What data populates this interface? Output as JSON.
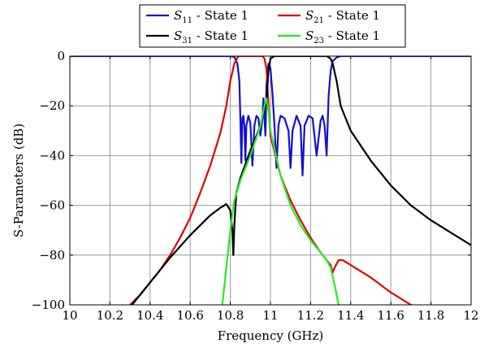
{
  "chart_data": {
    "type": "line",
    "xlabel": "Frequency (GHz)",
    "ylabel": "S-Parameters (dB)",
    "xlim": [
      10,
      12
    ],
    "ylim": [
      -100,
      0
    ],
    "xticks": [
      "10",
      "10.2",
      "10.4",
      "10.6",
      "10.8",
      "11",
      "11.2",
      "11.4",
      "11.6",
      "11.8",
      "12"
    ],
    "yticks": [
      "0",
      "−20",
      "−40",
      "−60",
      "−80",
      "−100"
    ],
    "grid": true,
    "legend_position": "top-center (above plot)",
    "series": [
      {
        "name": "S11 - State 1",
        "label_main": "S",
        "label_sub": "11",
        "label_rest": " - State 1",
        "color": "#1010d0",
        "points": [
          [
            10.0,
            0
          ],
          [
            10.8,
            0
          ],
          [
            10.82,
            -0.3
          ],
          [
            10.835,
            -3
          ],
          [
            10.845,
            -10
          ],
          [
            10.85,
            -25
          ],
          [
            10.855,
            -43
          ],
          [
            10.86,
            -25
          ],
          [
            10.865,
            -24
          ],
          [
            10.87,
            -28
          ],
          [
            10.875,
            -42
          ],
          [
            10.88,
            -28
          ],
          [
            10.89,
            -24
          ],
          [
            10.9,
            -27
          ],
          [
            10.91,
            -44
          ],
          [
            10.92,
            -28
          ],
          [
            10.93,
            -24
          ],
          [
            10.94,
            -25
          ],
          [
            10.95,
            -32
          ],
          [
            10.96,
            -25
          ],
          [
            10.965,
            -17
          ],
          [
            10.97,
            -25
          ],
          [
            10.975,
            -32
          ],
          [
            10.98,
            -12
          ],
          [
            10.99,
            -3
          ],
          [
            11.0,
            -5
          ],
          [
            11.01,
            -15
          ],
          [
            11.02,
            -28
          ],
          [
            11.03,
            -45
          ],
          [
            11.04,
            -28
          ],
          [
            11.05,
            -24
          ],
          [
            11.07,
            -25
          ],
          [
            11.09,
            -30
          ],
          [
            11.1,
            -45
          ],
          [
            11.11,
            -30
          ],
          [
            11.13,
            -24
          ],
          [
            11.15,
            -28
          ],
          [
            11.16,
            -48
          ],
          [
            11.17,
            -28
          ],
          [
            11.19,
            -24
          ],
          [
            11.21,
            -25
          ],
          [
            11.23,
            -40
          ],
          [
            11.25,
            -26
          ],
          [
            11.26,
            -24
          ],
          [
            11.27,
            -28
          ],
          [
            11.28,
            -40
          ],
          [
            11.29,
            -16
          ],
          [
            11.3,
            -6
          ],
          [
            11.31,
            -2
          ],
          [
            11.33,
            -0.5
          ],
          [
            11.35,
            0
          ],
          [
            12.0,
            0
          ]
        ]
      },
      {
        "name": "S21 - State 1",
        "label_main": "S",
        "label_sub": "21",
        "label_rest": " - State 1",
        "color": "#e00000",
        "points": [
          [
            10.3,
            -100
          ],
          [
            10.35,
            -96
          ],
          [
            10.4,
            -91
          ],
          [
            10.45,
            -86
          ],
          [
            10.5,
            -80
          ],
          [
            10.55,
            -73
          ],
          [
            10.6,
            -65
          ],
          [
            10.65,
            -55
          ],
          [
            10.7,
            -44
          ],
          [
            10.75,
            -31
          ],
          [
            10.78,
            -20
          ],
          [
            10.8,
            -10
          ],
          [
            10.82,
            -3
          ],
          [
            10.84,
            0
          ],
          [
            10.96,
            0
          ],
          [
            10.97,
            -1
          ],
          [
            10.98,
            -5
          ],
          [
            10.985,
            -12
          ],
          [
            10.99,
            -20
          ],
          [
            11.0,
            -32
          ],
          [
            11.05,
            -48
          ],
          [
            11.1,
            -58
          ],
          [
            11.15,
            -66
          ],
          [
            11.2,
            -73
          ],
          [
            11.25,
            -79
          ],
          [
            11.28,
            -82
          ],
          [
            11.3,
            -84
          ],
          [
            11.31,
            -87
          ],
          [
            11.32,
            -85
          ],
          [
            11.34,
            -82
          ],
          [
            11.36,
            -82
          ],
          [
            11.4,
            -84
          ],
          [
            11.5,
            -89
          ],
          [
            11.6,
            -95
          ],
          [
            11.7,
            -100
          ]
        ]
      },
      {
        "name": "S31 - State 1",
        "label_main": "S",
        "label_sub": "31",
        "label_rest": " - State 1",
        "color": "#000000",
        "points": [
          [
            10.31,
            -100
          ],
          [
            10.4,
            -91
          ],
          [
            10.5,
            -81
          ],
          [
            10.6,
            -72
          ],
          [
            10.7,
            -64
          ],
          [
            10.75,
            -61
          ],
          [
            10.78,
            -59.5
          ],
          [
            10.8,
            -62
          ],
          [
            10.81,
            -70
          ],
          [
            10.815,
            -80
          ],
          [
            10.82,
            -68
          ],
          [
            10.83,
            -55
          ],
          [
            10.85,
            -49
          ],
          [
            10.9,
            -38
          ],
          [
            10.95,
            -28
          ],
          [
            10.98,
            -18
          ],
          [
            10.99,
            -6
          ],
          [
            11.0,
            -1
          ],
          [
            11.02,
            0
          ],
          [
            11.28,
            0
          ],
          [
            11.3,
            -1
          ],
          [
            11.31,
            -3
          ],
          [
            11.33,
            -10
          ],
          [
            11.35,
            -20
          ],
          [
            11.4,
            -30
          ],
          [
            11.5,
            -42
          ],
          [
            11.6,
            -52
          ],
          [
            11.7,
            -60
          ],
          [
            11.8,
            -66
          ],
          [
            11.9,
            -71
          ],
          [
            12.0,
            -76
          ]
        ]
      },
      {
        "name": "S23 - State 1",
        "label_main": "S",
        "label_sub": "23",
        "label_rest": " - State 1",
        "color": "#22ee22",
        "points": [
          [
            10.76,
            -100
          ],
          [
            10.78,
            -85
          ],
          [
            10.8,
            -70
          ],
          [
            10.82,
            -58
          ],
          [
            10.85,
            -50
          ],
          [
            10.9,
            -40
          ],
          [
            10.95,
            -28
          ],
          [
            10.97,
            -20
          ],
          [
            10.98,
            -17
          ],
          [
            10.99,
            -22
          ],
          [
            11.0,
            -30
          ],
          [
            11.05,
            -48
          ],
          [
            11.1,
            -60
          ],
          [
            11.15,
            -68
          ],
          [
            11.2,
            -74
          ],
          [
            11.25,
            -79
          ],
          [
            11.28,
            -82
          ],
          [
            11.3,
            -85
          ],
          [
            11.32,
            -92
          ],
          [
            11.34,
            -100
          ]
        ]
      }
    ]
  }
}
